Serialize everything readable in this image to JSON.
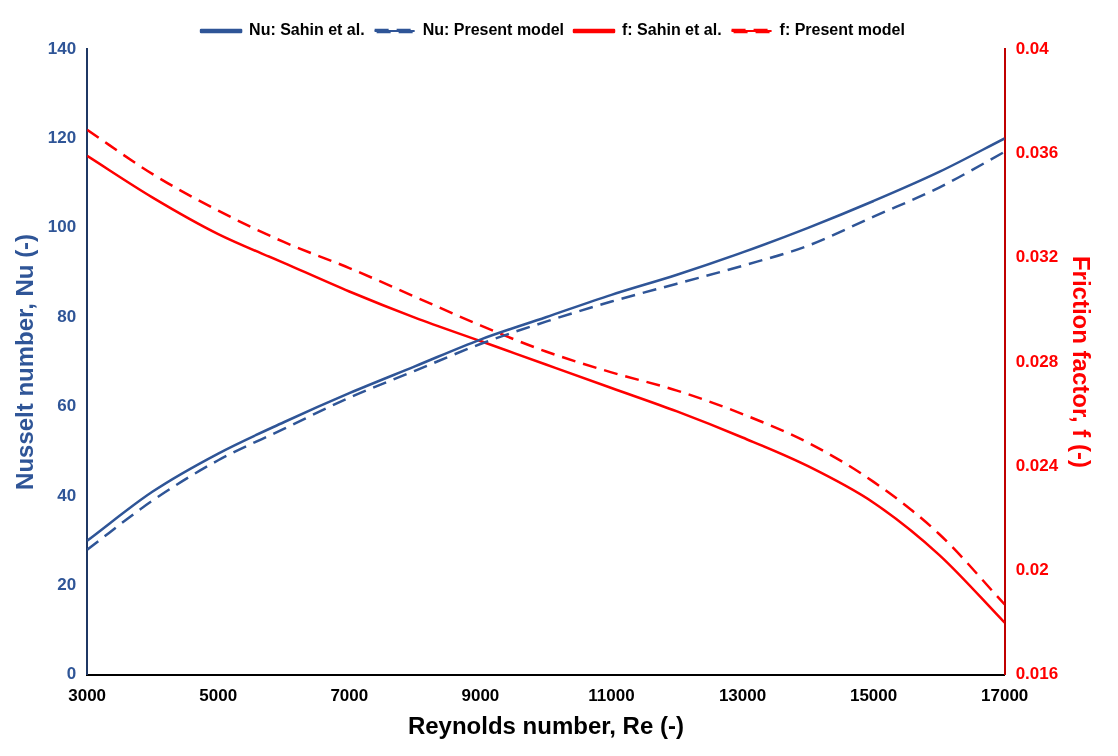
{
  "chart_data": {
    "type": "line",
    "xlabel": "Reynolds number, Re (-)",
    "ylabel": "Nusselt number, Nu (-)",
    "y2label": "Friction factor, f (-)",
    "x": [
      3000,
      4000,
      5000,
      6000,
      7000,
      8000,
      9000,
      10000,
      11000,
      12000,
      13000,
      14000,
      15000,
      16000,
      17000
    ],
    "series": [
      {
        "name": "Nu: Sahin et al.",
        "color": "#2f5597",
        "line_style": "solid",
        "values": [
          30,
          41,
          49.5,
          56.5,
          63,
          69,
          75,
          80,
          85,
          89.5,
          94.5,
          100,
          106,
          112.5,
          120
        ]
      },
      {
        "name": "Nu: Present model",
        "color": "#2f5597",
        "line_style": "dashed",
        "values": [
          28,
          39,
          48,
          55,
          62,
          68,
          74,
          79,
          83.5,
          87.5,
          91.5,
          96,
          102.5,
          109,
          117
        ]
      },
      {
        "name": "f: Sahin et al.",
        "color": "#ff0000",
        "line_style": "solid",
        "axis": "y2",
        "values": [
          0.0359,
          0.0343,
          0.0329,
          0.0318,
          0.0307,
          0.0297,
          0.0288,
          0.0279,
          0.027,
          0.0261,
          0.0251,
          0.024,
          0.0226,
          0.0206,
          0.018
        ]
      },
      {
        "name": "f: Present model",
        "color": "#ff0000",
        "line_style": "dashed",
        "axis": "y2",
        "values": [
          0.0369,
          0.0352,
          0.0338,
          0.0326,
          0.0316,
          0.0305,
          0.0294,
          0.0284,
          0.0276,
          0.0269,
          0.026,
          0.0249,
          0.0234,
          0.0214,
          0.0187
        ]
      }
    ],
    "xlim": [
      3000,
      17000
    ],
    "xticks": [
      3000,
      5000,
      7000,
      9000,
      11000,
      13000,
      15000,
      17000
    ],
    "ylim": [
      0,
      140
    ],
    "yticks": [
      0,
      20,
      40,
      60,
      80,
      100,
      120,
      140
    ],
    "y2lim": [
      0.016,
      0.04
    ],
    "y2ticks": [
      0.016,
      0.02,
      0.024,
      0.028,
      0.032,
      0.036,
      0.04
    ],
    "grid": false,
    "legend": "top",
    "marker": "none"
  }
}
